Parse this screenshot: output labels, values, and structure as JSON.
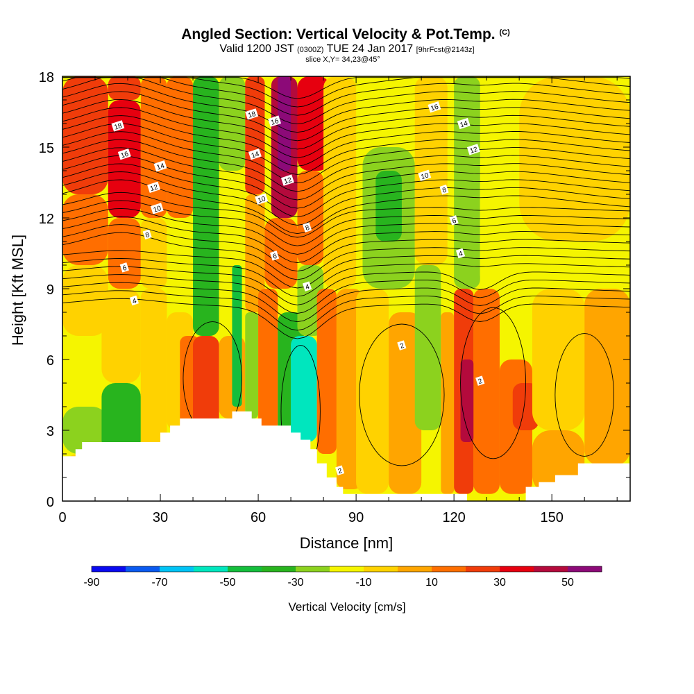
{
  "title": {
    "main": "Angled Section: Vertical Velocity & Pot.Temp.",
    "unit_tag": "(C)",
    "valid_prefix": "Valid 1200 JST",
    "valid_utc": "(0300Z)",
    "valid_date": "TUE 24 Jan 2017",
    "forecast": "[9hrFcst@2143z]",
    "slice": "slice X,Y= 34,23@45°"
  },
  "chart_data": {
    "type": "heatmap",
    "xlabel": "Distance [nm]",
    "ylabel": "Height [Kft MSL]",
    "xlim": [
      0,
      174
    ],
    "ylim": [
      0,
      18
    ],
    "x_ticks": [
      0,
      30,
      60,
      90,
      120,
      150
    ],
    "y_ticks": [
      0,
      3,
      6,
      9,
      12,
      15,
      18
    ],
    "colorbar": {
      "label": "Vertical Velocity [cm/s]",
      "tick_labels": [
        "-90",
        "-70",
        "-50",
        "-30",
        "-10",
        "10",
        "30",
        "50"
      ],
      "tick_values": [
        -90,
        -70,
        -50,
        -30,
        -10,
        10,
        30,
        50
      ],
      "range": [
        -90,
        60
      ],
      "step": 10,
      "colors": [
        "#0a0af0",
        "#0a5af0",
        "#00c3f5",
        "#00e6be",
        "#14be3c",
        "#28b41e",
        "#8cd21e",
        "#f5f500",
        "#ffd200",
        "#ffa500",
        "#ff6e00",
        "#f03c0a",
        "#e6000f",
        "#b40a3c",
        "#8c0a78"
      ]
    },
    "contour_labels": [
      "2",
      "4",
      "6",
      "8",
      "10",
      "12",
      "14",
      "16",
      "18"
    ],
    "cells": [
      {
        "x": [
          0,
          14
        ],
        "y": [
          0,
          2
        ],
        "v": -8
      },
      {
        "x": [
          0,
          14
        ],
        "y": [
          2,
          4
        ],
        "v": -25
      },
      {
        "x": [
          0,
          14
        ],
        "y": [
          4,
          7
        ],
        "v": -15
      },
      {
        "x": [
          0,
          14
        ],
        "y": [
          7,
          10
        ],
        "v": -5
      },
      {
        "x": [
          0,
          14
        ],
        "y": [
          10,
          13
        ],
        "v": 12
      },
      {
        "x": [
          0,
          14
        ],
        "y": [
          13,
          18
        ],
        "v": 20
      },
      {
        "x": [
          12,
          24
        ],
        "y": [
          2,
          5
        ],
        "v": -35
      },
      {
        "x": [
          12,
          24
        ],
        "y": [
          5,
          9
        ],
        "v": -10
      },
      {
        "x": [
          14,
          24
        ],
        "y": [
          9,
          12
        ],
        "v": 15
      },
      {
        "x": [
          14,
          24
        ],
        "y": [
          12,
          17
        ],
        "v": 33
      },
      {
        "x": [
          14,
          24
        ],
        "y": [
          17,
          18
        ],
        "v": 22
      },
      {
        "x": [
          24,
          32
        ],
        "y": [
          2,
          9
        ],
        "v": -8
      },
      {
        "x": [
          24,
          32
        ],
        "y": [
          9,
          12
        ],
        "v": -5
      },
      {
        "x": [
          24,
          32
        ],
        "y": [
          12,
          18
        ],
        "v": 18
      },
      {
        "x": [
          32,
          40
        ],
        "y": [
          3,
          8
        ],
        "v": -3
      },
      {
        "x": [
          32,
          40
        ],
        "y": [
          8,
          12
        ],
        "v": -20
      },
      {
        "x": [
          32,
          40
        ],
        "y": [
          12,
          18
        ],
        "v": 15
      },
      {
        "x": [
          36,
          42
        ],
        "y": [
          3,
          7
        ],
        "v": 12
      },
      {
        "x": [
          40,
          48
        ],
        "y": [
          3,
          7
        ],
        "v": 25
      },
      {
        "x": [
          40,
          48
        ],
        "y": [
          7,
          18
        ],
        "v": -32
      },
      {
        "x": [
          48,
          56
        ],
        "y": [
          3.5,
          7
        ],
        "v": 8
      },
      {
        "x": [
          48,
          56
        ],
        "y": [
          7,
          14
        ],
        "v": -12
      },
      {
        "x": [
          48,
          56
        ],
        "y": [
          14,
          18
        ],
        "v": -28
      },
      {
        "x": [
          52,
          55
        ],
        "y": [
          4,
          10
        ],
        "v": -45
      },
      {
        "x": [
          56,
          60
        ],
        "y": [
          3.5,
          8
        ],
        "v": -30
      },
      {
        "x": [
          56,
          62
        ],
        "y": [
          8,
          13
        ],
        "v": 5
      },
      {
        "x": [
          56,
          62
        ],
        "y": [
          13,
          18
        ],
        "v": 22
      },
      {
        "x": [
          60,
          66
        ],
        "y": [
          3,
          9
        ],
        "v": 18
      },
      {
        "x": [
          62,
          72
        ],
        "y": [
          9,
          12
        ],
        "v": 18
      },
      {
        "x": [
          64,
          72
        ],
        "y": [
          12,
          18
        ],
        "v": 40
      },
      {
        "x": [
          66,
          70
        ],
        "y": [
          14,
          18
        ],
        "v": 52
      },
      {
        "x": [
          66,
          74
        ],
        "y": [
          2.5,
          8
        ],
        "v": -40
      },
      {
        "x": [
          70,
          78
        ],
        "y": [
          2.5,
          7
        ],
        "v": -55
      },
      {
        "x": [
          72,
          80
        ],
        "y": [
          7,
          10
        ],
        "v": -25
      },
      {
        "x": [
          72,
          80
        ],
        "y": [
          10,
          14
        ],
        "v": 15
      },
      {
        "x": [
          72,
          82
        ],
        "y": [
          14,
          18
        ],
        "v": 30
      },
      {
        "x": [
          78,
          84
        ],
        "y": [
          2,
          9
        ],
        "v": 12
      },
      {
        "x": [
          80,
          90
        ],
        "y": [
          9,
          18
        ],
        "v": -8
      },
      {
        "x": [
          84,
          92
        ],
        "y": [
          0.5,
          9
        ],
        "v": 5
      },
      {
        "x": [
          90,
          100
        ],
        "y": [
          0.3,
          9
        ],
        "v": -10
      },
      {
        "x": [
          92,
          108
        ],
        "y": [
          9,
          15
        ],
        "v": -30
      },
      {
        "x": [
          96,
          104
        ],
        "y": [
          11,
          14
        ],
        "v": -38
      },
      {
        "x": [
          100,
          110
        ],
        "y": [
          0.3,
          8
        ],
        "v": 8
      },
      {
        "x": [
          108,
          116
        ],
        "y": [
          3,
          10
        ],
        "v": -25
      },
      {
        "x": [
          108,
          118
        ],
        "y": [
          10,
          18
        ],
        "v": -8
      },
      {
        "x": [
          116,
          120
        ],
        "y": [
          0.3,
          8
        ],
        "v": 5
      },
      {
        "x": [
          120,
          126
        ],
        "y": [
          0.3,
          9
        ],
        "v": 25
      },
      {
        "x": [
          122,
          126
        ],
        "y": [
          2.5,
          6
        ],
        "v": 45
      },
      {
        "x": [
          120,
          128
        ],
        "y": [
          9,
          18
        ],
        "v": -28
      },
      {
        "x": [
          126,
          134
        ],
        "y": [
          0.3,
          9
        ],
        "v": 12
      },
      {
        "x": [
          128,
          140
        ],
        "y": [
          9,
          14
        ],
        "v": -20
      },
      {
        "x": [
          134,
          144
        ],
        "y": [
          0.3,
          6
        ],
        "v": 15
      },
      {
        "x": [
          138,
          146
        ],
        "y": [
          3,
          5
        ],
        "v": 22
      },
      {
        "x": [
          140,
          174
        ],
        "y": [
          11,
          18
        ],
        "v": -8
      },
      {
        "x": [
          144,
          160
        ],
        "y": [
          0.3,
          3
        ],
        "v": 2
      },
      {
        "x": [
          144,
          160
        ],
        "y": [
          3,
          9
        ],
        "v": -10
      },
      {
        "x": [
          160,
          174
        ],
        "y": [
          1.5,
          9
        ],
        "v": 5
      },
      {
        "x": [
          140,
          174
        ],
        "y": [
          9,
          11
        ],
        "v": -15
      }
    ],
    "terrain": [
      [
        0,
        1.9
      ],
      [
        4,
        1.9
      ],
      [
        4,
        2.2
      ],
      [
        6,
        2.2
      ],
      [
        6,
        2.5
      ],
      [
        30,
        2.5
      ],
      [
        30,
        2.9
      ],
      [
        33,
        2.9
      ],
      [
        33,
        3.2
      ],
      [
        36,
        3.2
      ],
      [
        36,
        3.5
      ],
      [
        52,
        3.5
      ],
      [
        52,
        3.8
      ],
      [
        58,
        3.8
      ],
      [
        58,
        3.5
      ],
      [
        61,
        3.5
      ],
      [
        61,
        3.2
      ],
      [
        70,
        3.2
      ],
      [
        70,
        2.9
      ],
      [
        73,
        2.9
      ],
      [
        73,
        2.6
      ],
      [
        76,
        2.6
      ],
      [
        76,
        2.2
      ],
      [
        78,
        2.2
      ],
      [
        78,
        1.6
      ],
      [
        81,
        1.6
      ],
      [
        81,
        1.0
      ],
      [
        84,
        1.0
      ],
      [
        84,
        0.6
      ],
      [
        86,
        0.6
      ],
      [
        86,
        0.3
      ],
      [
        124,
        0.3
      ],
      [
        124,
        0
      ],
      [
        142,
        0
      ],
      [
        142,
        0.6
      ],
      [
        146,
        0.6
      ],
      [
        146,
        0.8
      ],
      [
        151,
        0.8
      ],
      [
        151,
        1.1
      ],
      [
        158,
        1.1
      ],
      [
        158,
        1.6
      ],
      [
        174,
        1.6
      ]
    ]
  }
}
